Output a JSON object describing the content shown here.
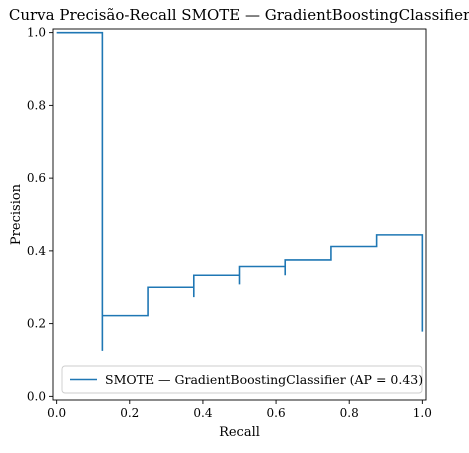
{
  "chart_data": {
    "type": "line",
    "title": "Curva Precisão-Recall SMOTE — GradientBoostingClassifier",
    "xlabel": "Recall",
    "ylabel": "Precision",
    "xlim": [
      -0.01,
      1.01
    ],
    "ylim": [
      -0.01,
      1.01
    ],
    "x_ticks": [
      0.0,
      0.2,
      0.4,
      0.6,
      0.8,
      1.0
    ],
    "x_tick_labels": [
      "0.0",
      "0.2",
      "0.4",
      "0.6",
      "0.8",
      "1.0"
    ],
    "y_ticks": [
      0.0,
      0.2,
      0.4,
      0.6,
      0.8,
      1.0
    ],
    "y_tick_labels": [
      "0.0",
      "0.2",
      "0.4",
      "0.6",
      "0.8",
      "1.0"
    ],
    "grid": false,
    "legend_position": "lower-right",
    "drawstyle": "steps-post",
    "series": [
      {
        "name": "SMOTE — GradientBoostingClassifier (AP = 0.43)",
        "color": "#1f77b4",
        "points": [
          {
            "recall": 1.0,
            "precision": 0.178
          },
          {
            "recall": 1.0,
            "precision": 0.444
          },
          {
            "recall": 0.875,
            "precision": 0.444
          },
          {
            "recall": 0.875,
            "precision": 0.412
          },
          {
            "recall": 0.75,
            "precision": 0.412
          },
          {
            "recall": 0.75,
            "precision": 0.375
          },
          {
            "recall": 0.625,
            "precision": 0.375
          },
          {
            "recall": 0.625,
            "precision": 0.333
          },
          {
            "recall": 0.625,
            "precision": 0.357
          },
          {
            "recall": 0.5,
            "precision": 0.357
          },
          {
            "recall": 0.5,
            "precision": 0.308
          },
          {
            "recall": 0.5,
            "precision": 0.333
          },
          {
            "recall": 0.375,
            "precision": 0.333
          },
          {
            "recall": 0.375,
            "precision": 0.273
          },
          {
            "recall": 0.375,
            "precision": 0.3
          },
          {
            "recall": 0.25,
            "precision": 0.3
          },
          {
            "recall": 0.25,
            "precision": 0.222
          },
          {
            "recall": 0.125,
            "precision": 0.222
          },
          {
            "recall": 0.125,
            "precision": 0.125
          },
          {
            "recall": 0.125,
            "precision": 1.0
          },
          {
            "recall": 0.0,
            "precision": 1.0
          }
        ]
      }
    ]
  }
}
